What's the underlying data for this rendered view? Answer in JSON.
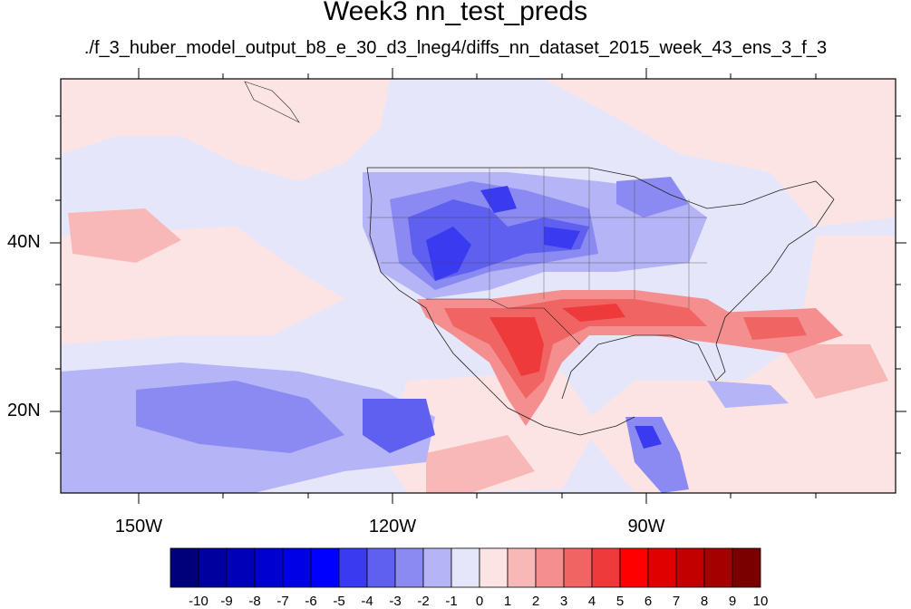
{
  "figure": {
    "title": "Week3 nn_test_preds",
    "subtitle": "./f_3_huber_model_output_b8_e_30_d3_lneg4/diffs_nn_dataset_2015_week_43_ens_3_f_3"
  },
  "axes": {
    "lat_labels": [
      "40N",
      "20N"
    ],
    "lon_labels": [
      "150W",
      "120W",
      "90W"
    ]
  },
  "colorbar": {
    "labels": [
      "-10",
      "-9",
      "-8",
      "-7",
      "-6",
      "-5",
      "-4",
      "-3",
      "-2",
      "-1",
      "0",
      "1",
      "2",
      "3",
      "4",
      "5",
      "6",
      "7",
      "8",
      "9",
      "10"
    ],
    "colors": [
      "#00007a",
      "#00009e",
      "#0000b8",
      "#0000d0",
      "#0000e6",
      "#0000ff",
      "#3a3af0",
      "#6060f0",
      "#8a8af2",
      "#b4b4f6",
      "#e6e6fb",
      "#fde4e4",
      "#f9b8b8",
      "#f58e8e",
      "#f06464",
      "#ee3a3a",
      "#ff0000",
      "#e00000",
      "#c20000",
      "#a40000",
      "#7a0000"
    ]
  }
}
